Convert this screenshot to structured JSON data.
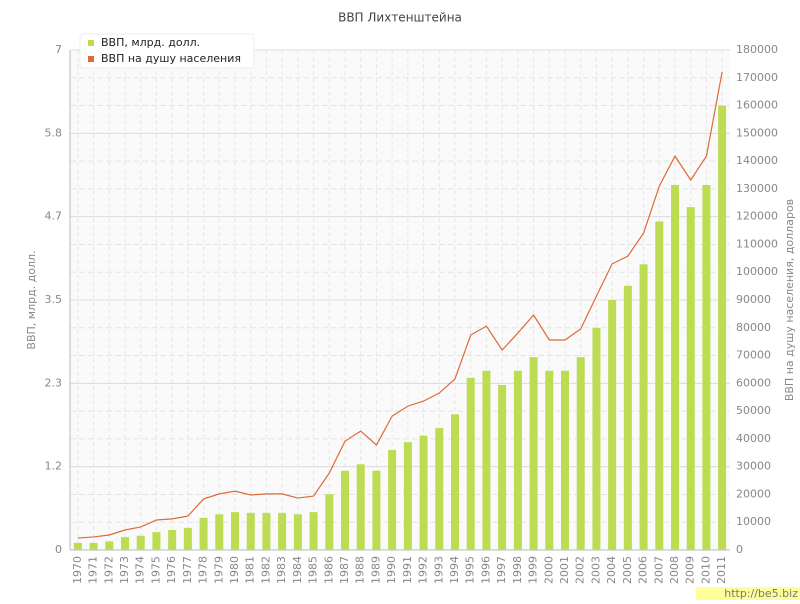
{
  "chart_data": {
    "type": "bar_line",
    "title": "ВВП Лихтенштейна",
    "ylabel": "ВВП, млрд. долл.",
    "y2label": "ВВП на душу населения, долларов",
    "watermark": "http://be5.biz",
    "categories": [
      "1970",
      "1971",
      "1972",
      "1973",
      "1974",
      "1975",
      "1976",
      "1977",
      "1978",
      "1979",
      "1980",
      "1981",
      "1982",
      "1983",
      "1984",
      "1985",
      "1986",
      "1987",
      "1988",
      "1989",
      "1990",
      "1991",
      "1992",
      "1993",
      "1994",
      "1995",
      "1996",
      "1997",
      "1998",
      "1999",
      "2000",
      "2001",
      "2002",
      "2003",
      "2004",
      "2005",
      "2006",
      "2007",
      "2008",
      "2009",
      "2010",
      "2011"
    ],
    "series": [
      {
        "name": "ВВП, млрд. долл.",
        "color": "#bcdc52",
        "kind": "bar",
        "values": [
          0.1,
          0.1,
          0.12,
          0.18,
          0.2,
          0.25,
          0.28,
          0.31,
          0.45,
          0.5,
          0.53,
          0.52,
          0.52,
          0.52,
          0.5,
          0.53,
          0.78,
          1.11,
          1.2,
          1.11,
          1.4,
          1.51,
          1.6,
          1.71,
          1.9,
          2.41,
          2.51,
          2.31,
          2.51,
          2.7,
          2.51,
          2.51,
          2.7,
          3.11,
          3.5,
          3.7,
          4.0,
          4.6,
          5.11,
          4.8,
          5.11,
          6.22
        ]
      },
      {
        "name": "ВВП на душу населения",
        "color": "#e0693a",
        "kind": "line",
        "axis": "y2",
        "values": [
          4300,
          4700,
          5400,
          7200,
          8300,
          10800,
          11200,
          12200,
          18400,
          20200,
          21200,
          19800,
          20200,
          20200,
          18700,
          19400,
          27700,
          39200,
          42800,
          37800,
          48200,
          51800,
          53600,
          56500,
          61600,
          77400,
          80600,
          72000,
          78100,
          84600,
          75600,
          75600,
          79600,
          91400,
          103000,
          105800,
          114100,
          131000,
          141800,
          133200,
          141800,
          172100
        ]
      }
    ],
    "ylim": [
      0,
      7
    ],
    "yticks": [
      0,
      {
        "value": 1.1667,
        "label": "1.2"
      },
      {
        "value": 2.3333,
        "label": "2.3"
      },
      3.5,
      {
        "value": 4.6667,
        "label": "4.7"
      },
      {
        "value": 5.8333,
        "label": "5.8"
      },
      7
    ],
    "y2lim": [
      0,
      180000
    ],
    "y2ticks": [
      0,
      10000,
      20000,
      30000,
      40000,
      50000,
      60000,
      70000,
      80000,
      90000,
      100000,
      110000,
      120000,
      130000,
      140000,
      150000,
      160000,
      170000,
      180000
    ],
    "grid": true
  }
}
